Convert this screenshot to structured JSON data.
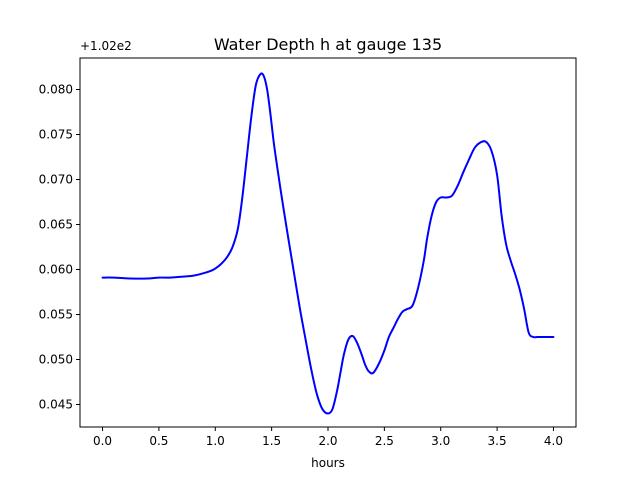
{
  "chart_data": {
    "type": "line",
    "title": "Water Depth h at gauge 135",
    "xlabel": "hours",
    "ylabel": "",
    "y_offset_label": "+1.02e2",
    "y_offset": 102,
    "xlim": [
      -0.2,
      4.2
    ],
    "ylim": [
      0.0425,
      0.0835
    ],
    "x_ticks": [
      0.0,
      0.5,
      1.0,
      1.5,
      2.0,
      2.5,
      3.0,
      3.5,
      4.0
    ],
    "x_tick_labels": [
      "0.0",
      "0.5",
      "1.0",
      "1.5",
      "2.0",
      "2.5",
      "3.0",
      "3.5",
      "4.0"
    ],
    "y_ticks": [
      0.045,
      0.05,
      0.055,
      0.06,
      0.065,
      0.07,
      0.075,
      0.08
    ],
    "y_tick_labels": [
      "0.045",
      "0.050",
      "0.055",
      "0.060",
      "0.065",
      "0.070",
      "0.075",
      "0.080"
    ],
    "grid": false,
    "series": [
      {
        "color": "#0000ff",
        "x": [
          0.0,
          0.1,
          0.25,
          0.4,
          0.5,
          0.6,
          0.7,
          0.8,
          0.9,
          0.97,
          1.0,
          1.05,
          1.1,
          1.15,
          1.2,
          1.24,
          1.28,
          1.32,
          1.36,
          1.4,
          1.43,
          1.46,
          1.49,
          1.52,
          1.56,
          1.6,
          1.65,
          1.7,
          1.75,
          1.8,
          1.85,
          1.9,
          1.95,
          2.0,
          2.04,
          2.08,
          2.11,
          2.14,
          2.18,
          2.22,
          2.26,
          2.3,
          2.33,
          2.36,
          2.4,
          2.45,
          2.5,
          2.54,
          2.58,
          2.62,
          2.66,
          2.7,
          2.75,
          2.8,
          2.85,
          2.88,
          2.92,
          2.96,
          3.0,
          3.05,
          3.1,
          3.15,
          3.2,
          3.25,
          3.3,
          3.35,
          3.4,
          3.45,
          3.5,
          3.54,
          3.58,
          3.62,
          3.66,
          3.7,
          3.74,
          3.78,
          3.82,
          3.86,
          3.9,
          3.95,
          4.0
        ],
        "y": [
          0.0591,
          0.0591,
          0.059,
          0.059,
          0.0591,
          0.0591,
          0.0592,
          0.0593,
          0.0596,
          0.0599,
          0.0601,
          0.0606,
          0.0613,
          0.0624,
          0.0645,
          0.068,
          0.0725,
          0.077,
          0.0805,
          0.0817,
          0.0815,
          0.08,
          0.0772,
          0.074,
          0.0705,
          0.0672,
          0.0633,
          0.0595,
          0.0557,
          0.0523,
          0.049,
          0.0462,
          0.0445,
          0.044,
          0.0445,
          0.0465,
          0.0485,
          0.0505,
          0.0522,
          0.0526,
          0.0518,
          0.0505,
          0.0494,
          0.0487,
          0.0485,
          0.0495,
          0.051,
          0.0525,
          0.0535,
          0.0545,
          0.0553,
          0.0556,
          0.056,
          0.058,
          0.061,
          0.0635,
          0.066,
          0.0675,
          0.068,
          0.068,
          0.0682,
          0.0693,
          0.0708,
          0.0722,
          0.0735,
          0.0741,
          0.0742,
          0.0732,
          0.0705,
          0.066,
          0.0628,
          0.061,
          0.0595,
          0.0578,
          0.0556,
          0.053,
          0.0525,
          0.0525,
          0.0525,
          0.0525,
          0.0525
        ]
      }
    ]
  }
}
